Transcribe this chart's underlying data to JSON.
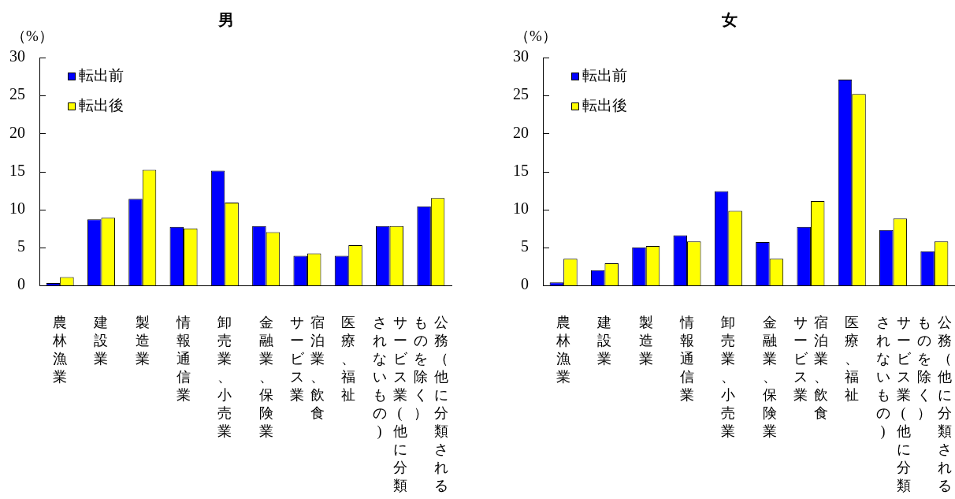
{
  "chart_data": [
    {
      "type": "bar",
      "title": "男",
      "ylabel": "（%）",
      "categories": [
        "農林漁業",
        "建設業",
        "製造業",
        "情報通信業",
        "卸売業、小売業",
        "金融業、保険業",
        "宿泊業、飲食サービス業",
        "医療、福祉",
        "サービス業(他に分類されないもの)",
        "公務（他に分類されるものを除く）"
      ],
      "series": [
        {
          "name": "転出前",
          "color": "#0000ff",
          "values": [
            0.3,
            8.7,
            11.4,
            7.7,
            15.1,
            7.8,
            3.9,
            3.9,
            7.8,
            10.4
          ]
        },
        {
          "name": "転出後",
          "color": "#ffff00",
          "values": [
            1.1,
            8.9,
            15.2,
            7.5,
            10.9,
            7.0,
            4.2,
            5.3,
            7.8,
            11.5
          ]
        }
      ],
      "ylim": [
        0,
        30
      ],
      "yticks": [
        0,
        5,
        10,
        15,
        20,
        25,
        30
      ],
      "legend": "top left"
    },
    {
      "type": "bar",
      "title": "女",
      "ylabel": "（%）",
      "categories": [
        "農林漁業",
        "建設業",
        "製造業",
        "情報通信業",
        "卸売業、小売業",
        "金融業、保険業",
        "宿泊業、飲食サービス業",
        "医療、福祉",
        "サービス業(他に分類されないもの)",
        "公務（他に分類されるものを除く）"
      ],
      "series": [
        {
          "name": "転出前",
          "color": "#0000ff",
          "values": [
            0.4,
            2.0,
            5.0,
            6.6,
            12.4,
            5.7,
            7.7,
            27.1,
            7.3,
            4.5
          ]
        },
        {
          "name": "転出後",
          "color": "#ffff00",
          "values": [
            3.5,
            2.9,
            5.2,
            5.8,
            9.8,
            3.5,
            11.1,
            25.2,
            8.8,
            5.8
          ]
        }
      ],
      "ylim": [
        0,
        30
      ],
      "yticks": [
        0,
        5,
        10,
        15,
        20,
        25,
        30
      ],
      "legend": "top left"
    }
  ]
}
